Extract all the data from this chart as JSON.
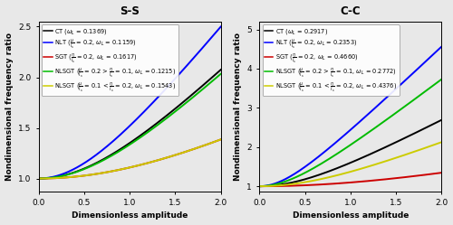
{
  "ss": {
    "title": "S-S",
    "ylim": [
      0.875,
      2.55
    ],
    "yticks": [
      1.0,
      1.5,
      2.0,
      2.5
    ],
    "curves": [
      {
        "label": "CT ($\\omega_L$ = 0.1369)",
        "color": "#000000",
        "alpha_coeff": 0.826,
        "lw": 1.4
      },
      {
        "label": "NLT ($\\frac{\\mu}{l_s}$ = 0.2, $\\omega_L$ = 0.1159)",
        "color": "#0000ff",
        "alpha_coeff": 1.3125,
        "lw": 1.4
      },
      {
        "label": "SGT ($\\frac{\\eta}{l_s}$ = 0.2, $\\omega_L$ = 0.1617)",
        "color": "#cc0000",
        "alpha_coeff": 0.23,
        "lw": 1.4
      },
      {
        "label": "NLSGT ($\\frac{\\mu}{l_s}$ = 0.2 > $\\frac{\\eta}{l_s}$ = 0.1, $\\omega_L$ = 0.1215)",
        "color": "#00bb00",
        "alpha_coeff": 0.784,
        "lw": 1.4
      },
      {
        "label": "NLSGT ($\\frac{\\mu}{l_s}$ = 0.1 < $\\frac{\\eta}{l_s}$ = 0.2, $\\omega_L$ = 0.1543)",
        "color": "#cccc00",
        "alpha_coeff": 0.23,
        "lw": 1.4
      }
    ]
  },
  "cc": {
    "title": "C-C",
    "ylim": [
      0.875,
      5.2
    ],
    "yticks": [
      1.0,
      2.0,
      3.0,
      4.0,
      5.0
    ],
    "curves": [
      {
        "label": "CT ($\\omega_L$ = 0.2917)",
        "color": "#000000",
        "alpha_coeff": 1.56,
        "lw": 1.4
      },
      {
        "label": "NLT ($\\frac{\\mu}{l_s}$ = 0.2, $\\omega_L$ = 0.2353)",
        "color": "#0000ff",
        "alpha_coeff": 4.95,
        "lw": 1.4
      },
      {
        "label": "SGT ($\\frac{\\eta}{l_s}$ = 0.2, $\\omega_L$ = 0.4660)",
        "color": "#cc0000",
        "alpha_coeff": 0.2025,
        "lw": 1.4
      },
      {
        "label": "NLSGT ($\\frac{\\mu}{l_s}$ = 0.2 > $\\frac{\\eta}{l_s}$ = 0.1, $\\omega_L$ = 0.2772)",
        "color": "#00bb00",
        "alpha_coeff": 3.225,
        "lw": 1.4
      },
      {
        "label": "NLSGT ($\\frac{\\mu}{l_s}$ = 0.1 < $\\frac{\\eta}{l_s}$ = 0.2, $\\omega_L$ = 0.4376)",
        "color": "#cccc00",
        "alpha_coeff": 0.879,
        "lw": 1.4
      }
    ]
  },
  "xlabel": "Dimensionless amplitude",
  "ylabel": "Nondimensional frequency ratio",
  "xlim": [
    0,
    2
  ],
  "xticks": [
    0,
    0.5,
    1.0,
    1.5,
    2.0
  ],
  "legend_fontsize": 4.8,
  "title_fontsize": 8.5,
  "label_fontsize": 6.5,
  "tick_fontsize": 6.5,
  "background_color": "#e8e8e8"
}
